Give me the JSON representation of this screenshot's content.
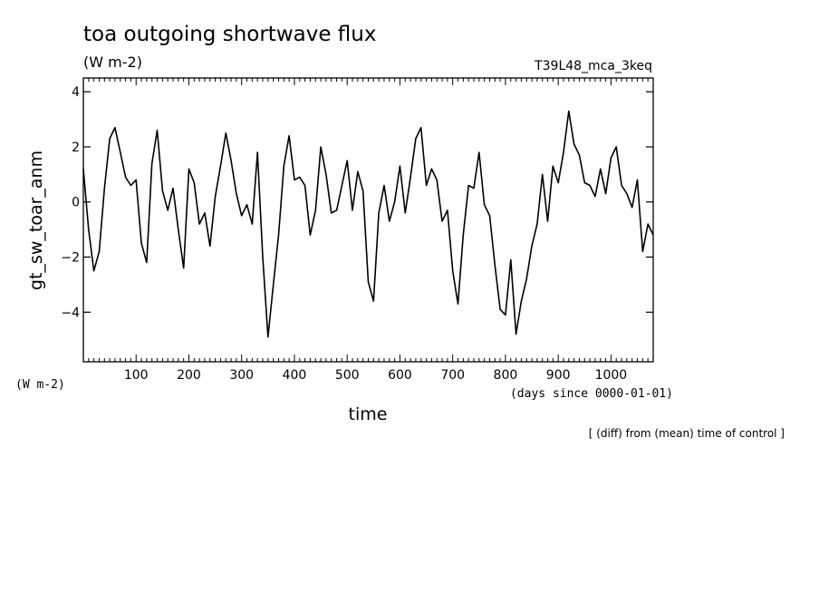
{
  "chart_data": {
    "type": "line",
    "title": "toa outgoing shortwave flux",
    "subtitle": "(W m-2)",
    "case_label": "T39L48_mca_3keq",
    "ylabel": "gt_sw_toar_anm",
    "ylabel_unit": "(W m-2)",
    "xlabel": "time",
    "xlabel_unit": "(days since 0000-01-01)",
    "footnote": "[ (diff) from (mean) time of control ]",
    "xlim": [
      0,
      1080
    ],
    "ylim": [
      -5.8,
      4.5
    ],
    "xticks": [
      100,
      200,
      300,
      400,
      500,
      600,
      700,
      800,
      900,
      1000
    ],
    "yticks": [
      4,
      2,
      0,
      -2,
      -4
    ],
    "ytick_labels": [
      "4",
      "2",
      "0",
      "−2",
      "−4"
    ],
    "grid": false,
    "line_color": "#000000",
    "series": [
      {
        "x": [
          0,
          10,
          20,
          30,
          40,
          50,
          60,
          70,
          80,
          90,
          100,
          110,
          120,
          130,
          140,
          150,
          160,
          170,
          180,
          190,
          200,
          210,
          220,
          230,
          240,
          250,
          260,
          270,
          280,
          290,
          300,
          310,
          320,
          330,
          340,
          350,
          360,
          370,
          380,
          390,
          400,
          410,
          420,
          430,
          440,
          450,
          460,
          470,
          480,
          490,
          500,
          510,
          520,
          530,
          540,
          550,
          560,
          570,
          580,
          590,
          600,
          610,
          620,
          630,
          640,
          650,
          660,
          670,
          680,
          690,
          700,
          710,
          720,
          730,
          740,
          750,
          760,
          770,
          780,
          790,
          800,
          810,
          820,
          830,
          840,
          850,
          860,
          870,
          880,
          890,
          900,
          910,
          920,
          930,
          940,
          950,
          960,
          970,
          980,
          990,
          1000,
          1010,
          1020,
          1030,
          1040,
          1050,
          1060,
          1070,
          1080
        ],
        "values": [
          1.2,
          -1.0,
          -2.5,
          -1.8,
          0.5,
          2.3,
          2.7,
          1.8,
          0.9,
          0.6,
          0.8,
          -1.5,
          -2.2,
          1.4,
          2.6,
          0.4,
          -0.3,
          0.5,
          -1.0,
          -2.4,
          1.2,
          0.7,
          -0.8,
          -0.4,
          -1.6,
          0.2,
          1.3,
          2.5,
          1.5,
          0.3,
          -0.5,
          -0.1,
          -0.8,
          1.8,
          -2.0,
          -4.9,
          -3.0,
          -1.2,
          1.3,
          2.4,
          0.8,
          0.9,
          0.6,
          -1.2,
          -0.3,
          2.0,
          1.0,
          -0.4,
          -0.3,
          0.6,
          1.5,
          -0.3,
          1.1,
          0.4,
          -2.9,
          -3.6,
          -0.4,
          0.6,
          -0.7,
          0.0,
          1.3,
          -0.4,
          0.9,
          2.3,
          2.7,
          0.6,
          1.2,
          0.8,
          -0.7,
          -0.3,
          -2.5,
          -3.7,
          -1.2,
          0.6,
          0.5,
          1.8,
          -0.1,
          -0.5,
          -2.3,
          -3.9,
          -4.1,
          -2.1,
          -4.8,
          -3.6,
          -2.8,
          -1.6,
          -0.8,
          1.0,
          -0.7,
          1.3,
          0.7,
          1.8,
          3.3,
          2.1,
          1.7,
          0.7,
          0.6,
          0.2,
          1.2,
          0.3,
          1.6,
          2.0,
          0.6,
          0.3,
          -0.2,
          0.8,
          -1.8,
          -0.8,
          -1.2
        ]
      }
    ]
  }
}
